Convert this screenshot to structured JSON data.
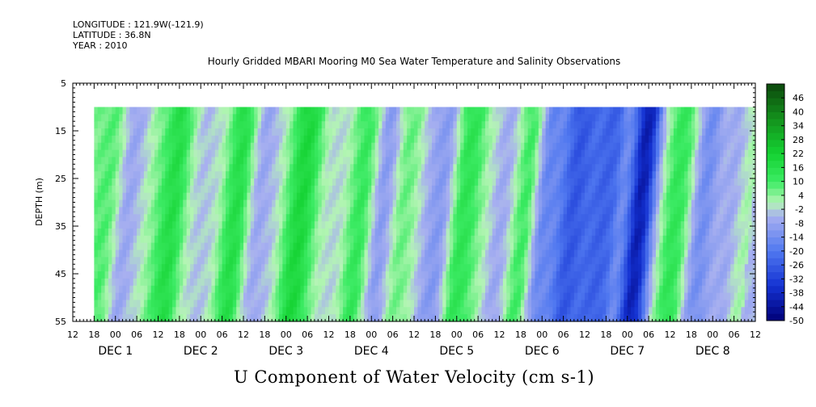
{
  "header": {
    "longitude": "LONGITUDE : 121.9W(-121.9)",
    "latitude": "LATITUDE : 36.8N",
    "year": "YEAR : 2010"
  },
  "chart_data": {
    "type": "heatmap",
    "title": "Hourly Gridded MBARI Mooring M0 Sea Water Temperature and Salinity Observations",
    "xlabel": "U Component of Water Velocity (cm s-1)",
    "ylabel": "DEPTH (m)",
    "ylim": [
      5,
      55
    ],
    "y_inverted": true,
    "y_ticks": [
      5,
      15,
      25,
      35,
      45,
      55
    ],
    "data_depth_range": [
      10,
      55
    ],
    "x_hour_ticks": [
      "12",
      "18",
      "00",
      "06",
      "12",
      "18",
      "00",
      "06",
      "12",
      "18",
      "00",
      "06",
      "12",
      "18",
      "00",
      "06",
      "12",
      "18",
      "00",
      "06",
      "12",
      "18",
      "00",
      "06",
      "12",
      "18",
      "00",
      "06",
      "12",
      "18",
      "00",
      "06",
      "12"
    ],
    "x_day_labels": [
      "DEC  1",
      "DEC  2",
      "DEC  3",
      "DEC  4",
      "DEC  5",
      "DEC  6",
      "DEC  7",
      "DEC  8"
    ],
    "x_range_hours_from_dec1": [
      -12,
      180
    ],
    "data_start_hours_from_dec1": -6,
    "colorbar_levels": [
      "46",
      "40",
      "34",
      "28",
      "22",
      "16",
      "10",
      "4",
      "-2",
      "-8",
      "-14",
      "-20",
      "-26",
      "-32",
      "-38",
      "-44",
      "-50"
    ],
    "colorbar_range": [
      -50,
      52
    ],
    "colorbar_step": 6,
    "low_color": "#00007a",
    "mid_color": "#a8b0f0",
    "high_color": "#0d4f0d",
    "pattern_bands": [
      {
        "t": -2,
        "w": 5,
        "v": 10
      },
      {
        "t": 7,
        "w": 6,
        "v": -8
      },
      {
        "t": 17,
        "w": 6,
        "v": 16
      },
      {
        "t": 28,
        "w": 5,
        "v": -8
      },
      {
        "t": 35,
        "w": 5,
        "v": 18
      },
      {
        "t": 44,
        "w": 5,
        "v": -10
      },
      {
        "t": 54,
        "w": 6,
        "v": 18
      },
      {
        "t": 63,
        "w": 4,
        "v": -6
      },
      {
        "t": 70,
        "w": 4,
        "v": 12
      },
      {
        "t": 78,
        "w": 4,
        "v": -10
      },
      {
        "t": 84,
        "w": 4,
        "v": 10
      },
      {
        "t": 92,
        "w": 5,
        "v": -12
      },
      {
        "t": 101,
        "w": 5,
        "v": 14
      },
      {
        "t": 111,
        "w": 5,
        "v": -10
      },
      {
        "t": 116,
        "w": 4,
        "v": 14
      },
      {
        "t": 124,
        "w": 4,
        "v": -14
      },
      {
        "t": 132,
        "w": 7,
        "v": -26
      },
      {
        "t": 140,
        "w": 5,
        "v": -22
      },
      {
        "t": 150,
        "w": 4,
        "v": -40
      },
      {
        "t": 160,
        "w": 5,
        "v": 16
      },
      {
        "t": 167,
        "w": 5,
        "v": -16
      },
      {
        "t": 174,
        "w": 4,
        "v": -4
      }
    ]
  }
}
